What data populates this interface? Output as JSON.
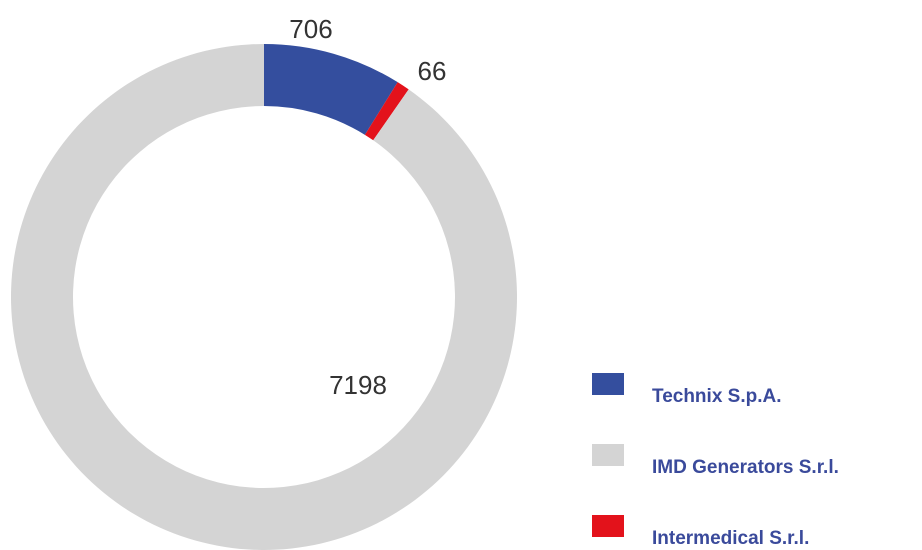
{
  "chart_data": {
    "type": "donut",
    "categories": [
      "Technix S.p.A.",
      "Intermedical S.r.l.",
      "IMD Generators S.r.l."
    ],
    "values": [
      706,
      66,
      7198
    ],
    "colors": [
      "#344e9e",
      "#e3121b",
      "#d4d4d4"
    ],
    "legend_order": [
      0,
      2,
      1
    ],
    "legend": "right"
  }
}
